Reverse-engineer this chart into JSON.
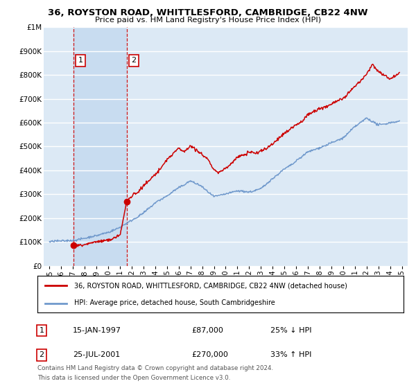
{
  "title": "36, ROYSTON ROAD, WHITTLESFORD, CAMBRIDGE, CB22 4NW",
  "subtitle": "Price paid vs. HM Land Registry's House Price Index (HPI)",
  "legend_line1": "36, ROYSTON ROAD, WHITTLESFORD, CAMBRIDGE, CB22 4NW (detached house)",
  "legend_line2": "HPI: Average price, detached house, South Cambridgeshire",
  "footer_line1": "Contains HM Land Registry data © Crown copyright and database right 2024.",
  "footer_line2": "This data is licensed under the Open Government Licence v3.0.",
  "sale1_label": "1",
  "sale1_date": "15-JAN-1997",
  "sale1_price": 87000,
  "sale1_price_str": "£87,000",
  "sale1_hpi_text": "25% ↓ HPI",
  "sale2_label": "2",
  "sale2_date": "25-JUL-2001",
  "sale2_price": 270000,
  "sale2_price_str": "£270,000",
  "sale2_hpi_text": "33% ↑ HPI",
  "sale1_x": 1997.04,
  "sale2_x": 2001.56,
  "ylim": [
    0,
    1000000
  ],
  "xlim": [
    1994.5,
    2025.5
  ],
  "bg_color": "#dce9f5",
  "highlight_color": "#c8dcf0",
  "red_color": "#cc0000",
  "blue_color": "#7099cc",
  "grid_color": "#ffffff",
  "title_fontsize": 9.5,
  "subtitle_fontsize": 8.5
}
